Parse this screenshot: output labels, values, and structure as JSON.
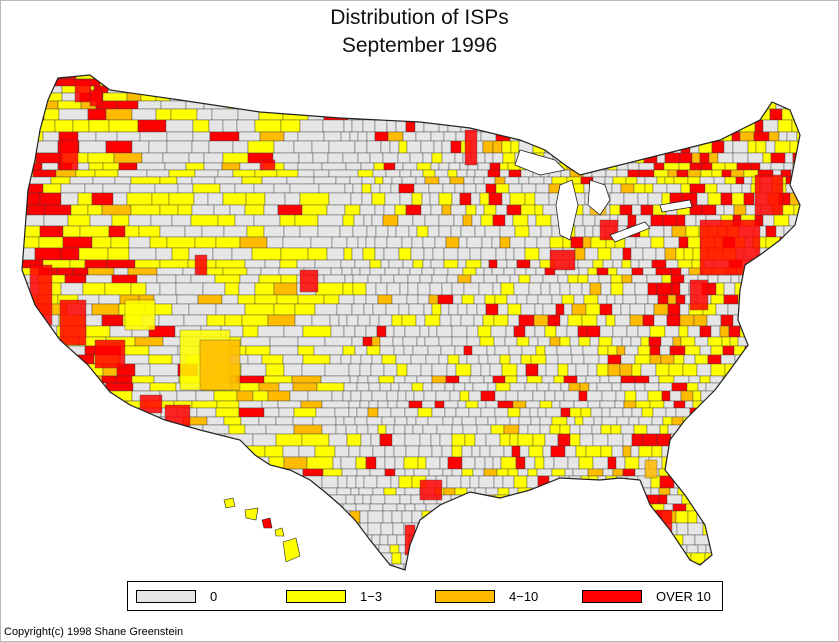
{
  "title": "Distribution of ISPs",
  "subtitle": "September 1996",
  "legend": [
    {
      "label": "0",
      "color": "#e6e6e6"
    },
    {
      "label": "1−3",
      "color": "#ffff00"
    },
    {
      "label": "4−10",
      "color": "#ffbb00"
    },
    {
      "label": "OVER 10",
      "color": "#ff0000"
    }
  ],
  "copyright": "Copyright(c)  1998  Shane  Greenstein",
  "colors": {
    "border": "#3a3a3a",
    "background": "#ffffff"
  }
}
